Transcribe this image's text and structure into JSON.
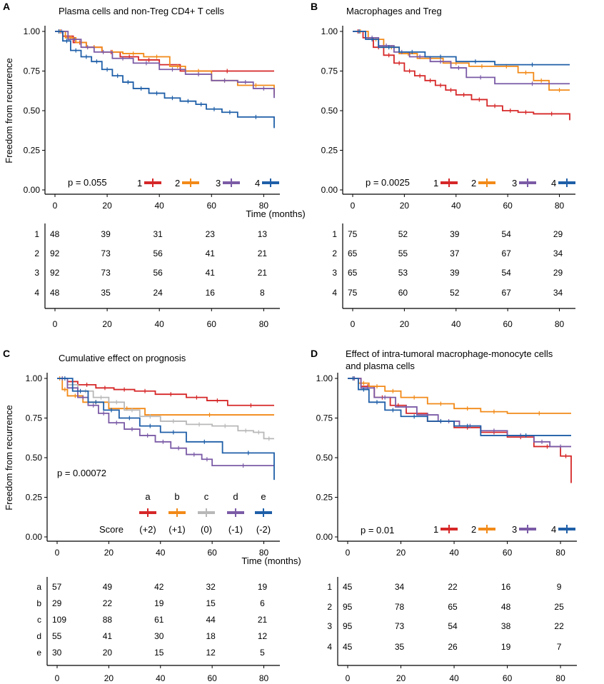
{
  "shared": {
    "y_label": "Freedom from recurrence",
    "x_label": "Time (months)",
    "score_label": "Score"
  },
  "panels": [
    {
      "letter": "A",
      "title": [
        "Plasma cells and non-Treg CD4+ T cells"
      ],
      "p_value": "p = 0.055",
      "groups": [
        "1",
        "2",
        "3",
        "4"
      ],
      "colors": [
        "#d62728",
        "#f28a18",
        "#7b5ba6",
        "#1f5fa8"
      ],
      "risk_table": [
        [
          "48",
          "39",
          "31",
          "23",
          "13"
        ],
        [
          "92",
          "73",
          "56",
          "41",
          "21"
        ],
        [
          "92",
          "73",
          "56",
          "41",
          "21"
        ],
        [
          "48",
          "35",
          "24",
          "16",
          "8"
        ]
      ]
    },
    {
      "letter": "B",
      "title": [
        "Macrophages and Treg"
      ],
      "p_value": "p = 0.0025",
      "groups": [
        "1",
        "2",
        "3",
        "4"
      ],
      "colors": [
        "#d62728",
        "#f28a18",
        "#7b5ba6",
        "#1f5fa8"
      ],
      "risk_table": [
        [
          "75",
          "52",
          "39",
          "54",
          "29"
        ],
        [
          "65",
          "55",
          "37",
          "67",
          "34"
        ],
        [
          "65",
          "53",
          "39",
          "54",
          "29"
        ],
        [
          "75",
          "60",
          "52",
          "67",
          "34"
        ]
      ]
    },
    {
      "letter": "C",
      "title": [
        "Cumulative effect on prognosis"
      ],
      "p_value": "p = 0.00072",
      "groups": [
        "a",
        "b",
        "c",
        "d",
        "e"
      ],
      "scores": [
        "(+2)",
        "(+1)",
        "(0)",
        "(-1)",
        "(-2)"
      ],
      "colors": [
        "#d62728",
        "#f28a18",
        "#b8b8b8",
        "#7b5ba6",
        "#1f5fa8"
      ],
      "risk_table": [
        [
          "57",
          "49",
          "42",
          "32",
          "19"
        ],
        [
          "29",
          "22",
          "19",
          "15",
          "6"
        ],
        [
          "109",
          "88",
          "61",
          "44",
          "21"
        ],
        [
          "55",
          "41",
          "30",
          "18",
          "12"
        ],
        [
          "30",
          "20",
          "15",
          "12",
          "5"
        ]
      ]
    },
    {
      "letter": "D",
      "title": [
        "Effect of intra-tumoral macrophage-monocyte cells",
        "and plasma cells"
      ],
      "p_value": "p = 0.01",
      "groups": [
        "1",
        "2",
        "3",
        "4"
      ],
      "colors": [
        "#d62728",
        "#f28a18",
        "#7b5ba6",
        "#1f5fa8"
      ],
      "risk_table": [
        [
          "45",
          "34",
          "22",
          "16",
          "9"
        ],
        [
          "95",
          "78",
          "65",
          "48",
          "25"
        ],
        [
          "95",
          "73",
          "54",
          "38",
          "22"
        ],
        [
          "45",
          "35",
          "26",
          "19",
          "7"
        ]
      ]
    }
  ],
  "chart_data": [
    {
      "type": "line",
      "title": "Plasma cells and non-Treg CD4+ T cells",
      "xlabel": "Time (months)",
      "ylabel": "Freedom from recurrence",
      "xlim": [
        0,
        84
      ],
      "ylim": [
        0,
        1
      ],
      "xticks": [
        "0",
        "20",
        "40",
        "60",
        "80"
      ],
      "yticks": [
        "0.00",
        "0.25",
        "0.50",
        "0.75",
        "1.00"
      ],
      "series": [
        {
          "name": "1",
          "x": [
            0,
            3,
            7,
            12,
            18,
            25,
            32,
            40,
            48,
            84
          ],
          "y": [
            1.0,
            0.97,
            0.93,
            0.9,
            0.87,
            0.84,
            0.82,
            0.79,
            0.75,
            0.75
          ]
        },
        {
          "name": "2",
          "x": [
            0,
            4,
            8,
            12,
            18,
            26,
            34,
            44,
            50,
            60,
            70,
            84
          ],
          "y": [
            1.0,
            0.96,
            0.93,
            0.9,
            0.87,
            0.86,
            0.84,
            0.78,
            0.75,
            0.69,
            0.66,
            0.6
          ]
        },
        {
          "name": "3",
          "x": [
            0,
            5,
            10,
            15,
            22,
            30,
            40,
            50,
            60,
            70,
            76,
            84
          ],
          "y": [
            1.0,
            0.95,
            0.9,
            0.87,
            0.83,
            0.8,
            0.76,
            0.73,
            0.69,
            0.68,
            0.64,
            0.58
          ]
        },
        {
          "name": "4",
          "x": [
            0,
            3,
            6,
            10,
            14,
            18,
            22,
            26,
            30,
            36,
            42,
            48,
            54,
            58,
            64,
            70,
            84
          ],
          "y": [
            1.0,
            0.94,
            0.88,
            0.84,
            0.81,
            0.76,
            0.72,
            0.68,
            0.64,
            0.61,
            0.58,
            0.56,
            0.54,
            0.51,
            0.49,
            0.46,
            0.39
          ]
        }
      ],
      "legend": "bottom-right inside"
    },
    {
      "type": "line",
      "title": "Macrophages and Treg",
      "xlabel": "Time (months)",
      "ylabel": "Freedom from recurrence",
      "xlim": [
        0,
        84
      ],
      "ylim": [
        0,
        1
      ],
      "xticks": [
        "0",
        "20",
        "40",
        "60",
        "80"
      ],
      "yticks": [
        "0.00",
        "0.25",
        "0.50",
        "0.75",
        "1.00"
      ],
      "series": [
        {
          "name": "1",
          "x": [
            0,
            4,
            8,
            12,
            16,
            20,
            24,
            28,
            32,
            36,
            40,
            46,
            52,
            58,
            64,
            70,
            84
          ],
          "y": [
            1.0,
            0.96,
            0.9,
            0.85,
            0.8,
            0.75,
            0.72,
            0.69,
            0.66,
            0.63,
            0.6,
            0.57,
            0.53,
            0.5,
            0.49,
            0.48,
            0.44
          ]
        },
        {
          "name": "2",
          "x": [
            0,
            6,
            12,
            18,
            25,
            35,
            45,
            55,
            64,
            70,
            76,
            84
          ],
          "y": [
            1.0,
            0.95,
            0.9,
            0.86,
            0.83,
            0.8,
            0.78,
            0.78,
            0.74,
            0.69,
            0.63,
            0.63
          ]
        },
        {
          "name": "3",
          "x": [
            0,
            5,
            10,
            16,
            22,
            30,
            38,
            44,
            55,
            84
          ],
          "y": [
            1.0,
            0.96,
            0.91,
            0.87,
            0.84,
            0.81,
            0.77,
            0.71,
            0.67,
            0.67
          ]
        },
        {
          "name": "4",
          "x": [
            0,
            5,
            10,
            18,
            28,
            40,
            55,
            84
          ],
          "y": [
            1.0,
            0.95,
            0.9,
            0.87,
            0.84,
            0.81,
            0.79,
            0.79
          ]
        }
      ],
      "legend": "bottom-right inside"
    },
    {
      "type": "line",
      "title": "Cumulative effect on prognosis",
      "xlabel": "Time (months)",
      "ylabel": "Freedom from recurrence",
      "xlim": [
        0,
        84
      ],
      "ylim": [
        0,
        1
      ],
      "xticks": [
        "0",
        "20",
        "40",
        "60",
        "80"
      ],
      "yticks": [
        "0.00",
        "0.25",
        "0.50",
        "0.75",
        "1.00"
      ],
      "series": [
        {
          "name": "a",
          "x": [
            0,
            4,
            8,
            15,
            22,
            30,
            38,
            50,
            58,
            66,
            84
          ],
          "y": [
            1.0,
            0.98,
            0.96,
            0.94,
            0.93,
            0.92,
            0.9,
            0.88,
            0.86,
            0.83,
            0.83
          ]
        },
        {
          "name": "b",
          "x": [
            0,
            2,
            4,
            10,
            20,
            34,
            84
          ],
          "y": [
            1.0,
            0.93,
            0.89,
            0.85,
            0.81,
            0.77,
            0.77
          ]
        },
        {
          "name": "c",
          "x": [
            0,
            4,
            8,
            14,
            20,
            26,
            32,
            40,
            50,
            60,
            70,
            76,
            80,
            84
          ],
          "y": [
            1.0,
            0.96,
            0.92,
            0.88,
            0.85,
            0.8,
            0.76,
            0.73,
            0.71,
            0.7,
            0.67,
            0.66,
            0.62,
            0.62
          ]
        },
        {
          "name": "d",
          "x": [
            0,
            4,
            8,
            12,
            16,
            20,
            26,
            32,
            38,
            44,
            50,
            56,
            60,
            84
          ],
          "y": [
            1.0,
            0.94,
            0.88,
            0.83,
            0.78,
            0.72,
            0.68,
            0.64,
            0.6,
            0.56,
            0.52,
            0.49,
            0.45,
            0.45
          ]
        },
        {
          "name": "e",
          "x": [
            0,
            6,
            12,
            18,
            24,
            32,
            40,
            50,
            64,
            84
          ],
          "y": [
            1.0,
            0.92,
            0.85,
            0.8,
            0.75,
            0.7,
            0.66,
            0.6,
            0.53,
            0.36
          ]
        }
      ],
      "legend": "bottom-center inside"
    },
    {
      "type": "line",
      "title": "Effect of intra-tumoral macrophage-monocyte cells and plasma cells",
      "xlabel": "",
      "ylabel": "Freedom from recurrence",
      "xlim": [
        0,
        84
      ],
      "ylim": [
        0,
        1
      ],
      "xticks": [
        "0",
        "20",
        "40",
        "60",
        "80"
      ],
      "yticks": [
        "0.00",
        "0.25",
        "0.50",
        "0.75",
        "1.00"
      ],
      "series": [
        {
          "name": "1",
          "x": [
            0,
            5,
            10,
            16,
            22,
            30,
            40,
            50,
            60,
            70,
            80,
            84
          ],
          "y": [
            1.0,
            0.95,
            0.88,
            0.83,
            0.78,
            0.73,
            0.69,
            0.66,
            0.63,
            0.57,
            0.51,
            0.34
          ]
        },
        {
          "name": "2",
          "x": [
            0,
            4,
            8,
            14,
            20,
            30,
            40,
            50,
            60,
            84
          ],
          "y": [
            1.0,
            0.97,
            0.95,
            0.92,
            0.88,
            0.84,
            0.81,
            0.79,
            0.78,
            0.78
          ]
        },
        {
          "name": "3",
          "x": [
            0,
            5,
            10,
            18,
            26,
            34,
            42,
            50,
            60,
            70,
            76,
            84
          ],
          "y": [
            1.0,
            0.94,
            0.88,
            0.82,
            0.77,
            0.73,
            0.7,
            0.67,
            0.64,
            0.6,
            0.57,
            0.57
          ]
        },
        {
          "name": "4",
          "x": [
            0,
            4,
            8,
            14,
            20,
            30,
            40,
            50,
            84
          ],
          "y": [
            1.0,
            0.93,
            0.85,
            0.8,
            0.76,
            0.73,
            0.7,
            0.64,
            0.64
          ]
        }
      ],
      "legend": "bottom-right inside"
    }
  ]
}
